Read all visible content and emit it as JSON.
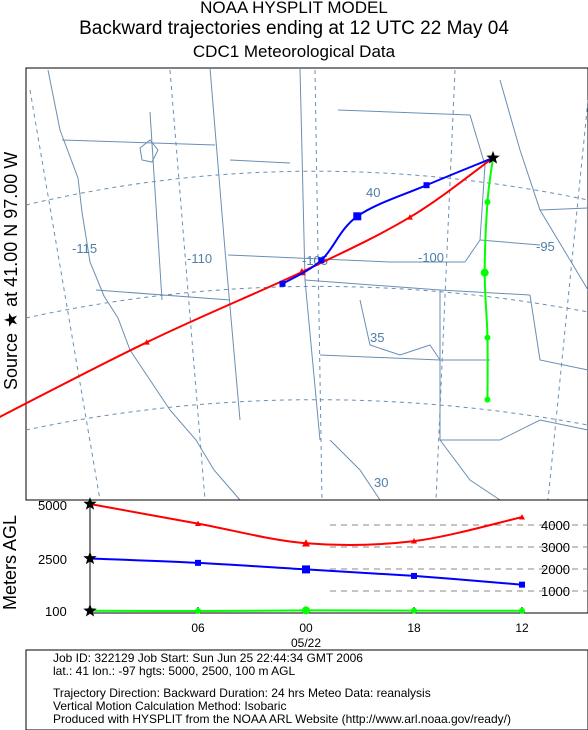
{
  "header": {
    "line1": "NOAA HYSPLIT MODEL",
    "line2": "Backward trajectories ending at 12 UTC 22 May 04",
    "line3": "CDC1 Meteorological Data"
  },
  "side_labels": {
    "source": "Source ★ at   41.00 N   97.00 W",
    "height": "Meters AGL"
  },
  "colors": {
    "red": "#ff0000",
    "blue": "#0000ff",
    "green": "#00ff00",
    "map_lines": "#6a8fb3",
    "grid_labels": "#4f7fa8"
  },
  "chart_data": [
    {
      "type": "line",
      "title": "Backward trajectories ending at 12 UTC 22 May 04",
      "longitude_labels": [
        "-115",
        "-110",
        "-105",
        "-100",
        "-95"
      ],
      "latitude_labels": [
        "40",
        "35",
        "30"
      ],
      "source": {
        "lat": 41.0,
        "lon": -97.0
      },
      "series": [
        {
          "height_m": 5000,
          "color": "red",
          "marker": "triangle",
          "points": [
            {
              "lon": -97.0,
              "lat": 41.0
            },
            {
              "lon": -100.0,
              "lat": 38.9
            },
            {
              "lon": -103.9,
              "lat": 37.0
            },
            {
              "lon": -109.5,
              "lat": 34.7
            },
            {
              "lon": -116.0,
              "lat": 31.9
            }
          ]
        },
        {
          "height_m": 2500,
          "color": "blue",
          "marker": "square",
          "points": [
            {
              "lon": -97.0,
              "lat": 41.0
            },
            {
              "lon": -99.4,
              "lat": 40.0
            },
            {
              "lon": -101.9,
              "lat": 38.9
            },
            {
              "lon": -103.2,
              "lat": 37.4
            },
            {
              "lon": -104.6,
              "lat": 36.6
            }
          ]
        },
        {
          "height_m": 100,
          "color": "green",
          "marker": "circle",
          "points": [
            {
              "lon": -97.0,
              "lat": 41.0
            },
            {
              "lon": -97.2,
              "lat": 39.5
            },
            {
              "lon": -97.3,
              "lat": 37.1
            },
            {
              "lon": -97.2,
              "lat": 34.9
            },
            {
              "lon": -97.2,
              "lat": 32.8
            }
          ]
        }
      ]
    },
    {
      "type": "line",
      "ylabel": "Meters AGL",
      "x_tick_labels": [
        "12",
        "18",
        "00",
        "06"
      ],
      "x_date_label": "05/22",
      "x_hours_before_end": [
        0,
        6,
        12,
        18,
        24
      ],
      "left_tick_labels": [
        "5000",
        "2500",
        "100"
      ],
      "right_tick_labels": [
        "4000",
        "3000",
        "2000",
        "1000"
      ],
      "right_range_m": [
        0,
        4000
      ],
      "series": [
        {
          "height_m": 5000,
          "color": "red",
          "marker": "triangle",
          "profile": [
            4400,
            3300,
            3200,
            4100,
            5000
          ]
        },
        {
          "height_m": 2500,
          "color": "blue",
          "marker": "square",
          "profile": [
            1300,
            1700,
            2000,
            2300,
            2500
          ]
        },
        {
          "height_m": 100,
          "color": "green",
          "marker": "circle",
          "profile": [
            100,
            110,
            120,
            90,
            80
          ]
        }
      ]
    }
  ],
  "footer": {
    "line1": "Job ID: 322129          Job Start: Sun Jun 25 22:44:34 GMT 2006",
    "line2": "lat.: 41  lon.: -97  hgts: 5000, 2500, 100 m AGL",
    "line3": "Trajectory Direction: Backward    Duration: 24 hrs     Meteo Data: reanalysis",
    "line4": "Vertical Motion Calculation Method: Isobaric",
    "line5": "Produced with HYSPLIT from the NOAA ARL Website (http://www.arl.noaa.gov/ready/)"
  }
}
